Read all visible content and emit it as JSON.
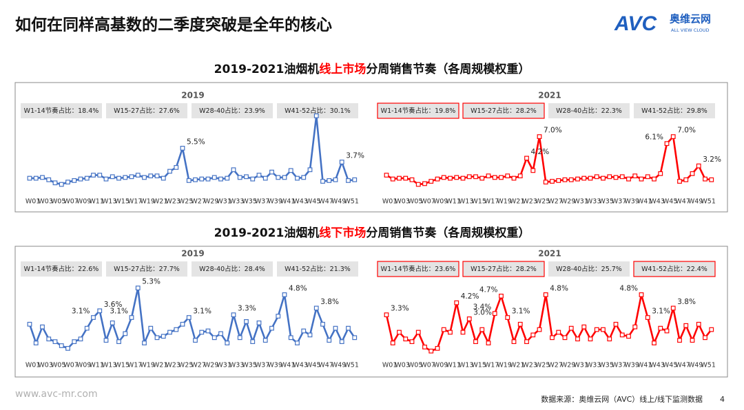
{
  "header": {
    "title": "如何在同样高基数的二季度突破是全年的核心"
  },
  "logo": {
    "mark": "AVC",
    "name": "奥维云网",
    "tagline": "ALL VIEW CLOUD"
  },
  "sections": [
    {
      "title": [
        {
          "text": "2019-2021油烟机",
          "highlight": false
        },
        {
          "text": "线上市场",
          "highlight": true
        },
        {
          "text": "分周销售节奏（各周规模权重）",
          "highlight": false
        }
      ]
    },
    {
      "title": [
        {
          "text": "2019-2021油烟机",
          "highlight": false
        },
        {
          "text": "线下市场",
          "highlight": true
        },
        {
          "text": "分周销售节奏（各周规模权重）",
          "highlight": false
        }
      ]
    }
  ],
  "chart_data": [
    {
      "type": "line",
      "title": "2019",
      "ylim": [
        0,
        10
      ],
      "stats": [
        {
          "text": "W1-14节奏占比：18.4%",
          "highlight": false
        },
        {
          "text": "W15-27占比：27.6%",
          "highlight": false
        },
        {
          "text": "W28-40占比：23.9%",
          "highlight": false
        },
        {
          "text": "W41-52占比：30.1%",
          "highlight": false
        }
      ],
      "categories": [
        "W01",
        null,
        "W03",
        null,
        "W05",
        null,
        "W07",
        null,
        "W09",
        null,
        "W11",
        null,
        "W13",
        null,
        "W15",
        null,
        "W17",
        null,
        "W19",
        null,
        "W21",
        null,
        "W23",
        null,
        "W25",
        null,
        "W27",
        null,
        "W29",
        null,
        "W31",
        null,
        "W33",
        null,
        "W35",
        null,
        "W37",
        null,
        "W39",
        null,
        "W41",
        null,
        "W43",
        null,
        "W45",
        null,
        "W47",
        null,
        "W49",
        null,
        "W51",
        null
      ],
      "series": [
        {
          "color": "#4472c4",
          "values": [
            1.6,
            1.6,
            1.7,
            1.4,
            1.0,
            0.8,
            1.1,
            1.3,
            1.5,
            1.6,
            2.0,
            2.0,
            1.5,
            1.8,
            1.6,
            1.7,
            1.8,
            2.0,
            1.7,
            1.9,
            1.9,
            1.6,
            2.5,
            3.0,
            5.5,
            1.3,
            1.4,
            1.5,
            1.5,
            1.7,
            1.5,
            1.6,
            2.7,
            1.7,
            1.8,
            1.5,
            2.0,
            1.6,
            2.4,
            1.7,
            1.7,
            2.6,
            1.6,
            1.7,
            2.7,
            9.7,
            1.2,
            1.3,
            1.4,
            3.7,
            1.3,
            1.4
          ],
          "value_labels": [
            null,
            null,
            null,
            null,
            null,
            null,
            null,
            null,
            null,
            null,
            null,
            null,
            null,
            null,
            null,
            null,
            null,
            null,
            null,
            null,
            null,
            null,
            null,
            null,
            "5.5%",
            null,
            null,
            null,
            null,
            null,
            null,
            null,
            null,
            null,
            null,
            null,
            null,
            null,
            null,
            null,
            null,
            null,
            null,
            null,
            null,
            null,
            null,
            null,
            null,
            "3.7%",
            null,
            null
          ]
        }
      ]
    },
    {
      "type": "line",
      "title": "2021",
      "ylim": [
        0,
        10
      ],
      "stats": [
        {
          "text": "W1-14节奏占比：19.8%",
          "highlight": true
        },
        {
          "text": "W15-27占比：28.2%",
          "highlight": true
        },
        {
          "text": "W28-40占比：22.3%",
          "highlight": false
        },
        {
          "text": "W41-52占比：29.8%",
          "highlight": false
        }
      ],
      "categories": [
        "W01",
        null,
        "W03",
        null,
        "W05",
        null,
        "W07",
        null,
        "W09",
        null,
        "W11",
        null,
        "W13",
        null,
        "W15",
        null,
        "W17",
        null,
        "W19",
        null,
        "W21",
        null,
        "W23",
        null,
        "W25",
        null,
        "W27",
        null,
        "W29",
        null,
        "W31",
        null,
        "W33",
        null,
        "W35",
        null,
        "W37",
        null,
        "W39",
        null,
        "W41",
        null,
        "W43",
        null,
        "W45",
        null,
        "W47",
        null,
        "W49",
        null,
        "W51",
        null
      ],
      "series": [
        {
          "color": "#ff0000",
          "values": [
            2.0,
            1.5,
            1.6,
            1.6,
            1.4,
            0.8,
            0.9,
            1.2,
            1.5,
            1.7,
            1.6,
            1.7,
            1.6,
            1.8,
            1.8,
            1.6,
            1.9,
            1.7,
            1.7,
            1.9,
            1.6,
            1.9,
            4.2,
            2.6,
            7.0,
            1.1,
            1.2,
            1.3,
            1.4,
            1.4,
            1.5,
            1.6,
            1.6,
            1.8,
            1.6,
            1.8,
            1.7,
            1.8,
            1.5,
            1.9,
            1.5,
            1.8,
            1.5,
            2.2,
            6.1,
            7.0,
            1.2,
            1.4,
            2.2,
            3.2,
            1.5,
            1.4
          ],
          "value_labels": [
            null,
            null,
            null,
            null,
            null,
            null,
            null,
            null,
            null,
            null,
            null,
            null,
            null,
            null,
            null,
            null,
            null,
            null,
            null,
            null,
            null,
            null,
            "4.2%",
            null,
            "7.0%",
            null,
            null,
            null,
            null,
            null,
            null,
            null,
            null,
            null,
            null,
            null,
            null,
            null,
            null,
            null,
            null,
            null,
            null,
            null,
            "6.1%",
            "7.0%",
            null,
            null,
            null,
            "3.2%",
            null,
            null
          ]
        }
      ]
    },
    {
      "type": "line",
      "title": "2019",
      "ylim": [
        0,
        6
      ],
      "stats": [
        {
          "text": "W1-14节奏占比：22.6%",
          "highlight": false
        },
        {
          "text": "W15-27占比：27.7%",
          "highlight": false
        },
        {
          "text": "W28-40占比：28.4%",
          "highlight": false
        },
        {
          "text": "W41-52占比：21.3%",
          "highlight": false
        }
      ],
      "categories": [
        "W01",
        null,
        "W03",
        null,
        "W05",
        null,
        "W07",
        null,
        "W09",
        null,
        "W11",
        null,
        "W13",
        null,
        "W15",
        null,
        "W17",
        null,
        "W19",
        null,
        "W21",
        null,
        "W23",
        null,
        "W25",
        null,
        "W27",
        null,
        "W29",
        null,
        "W31",
        null,
        "W33",
        null,
        "W35",
        null,
        "W37",
        null,
        "W39",
        null,
        "W41",
        null,
        "W43",
        null,
        "W45",
        null,
        "W47",
        null,
        "W49",
        null,
        "W51",
        null
      ],
      "series": [
        {
          "color": "#4472c4",
          "values": [
            2.6,
            1.2,
            2.4,
            1.5,
            1.3,
            1.0,
            0.8,
            1.3,
            1.5,
            2.3,
            3.1,
            3.6,
            1.4,
            2.7,
            1.3,
            1.9,
            3.1,
            5.3,
            1.2,
            2.3,
            1.6,
            1.7,
            2.0,
            2.2,
            2.6,
            3.1,
            1.4,
            2.0,
            2.1,
            1.6,
            1.9,
            1.2,
            3.3,
            1.6,
            2.8,
            1.3,
            2.7,
            1.4,
            2.3,
            3.2,
            4.8,
            1.6,
            1.2,
            2.1,
            1.8,
            3.8,
            2.6,
            1.4,
            2.3,
            1.3,
            2.3,
            1.6
          ],
          "value_labels": [
            null,
            null,
            null,
            null,
            null,
            null,
            null,
            null,
            null,
            null,
            "3.1%",
            "3.6%",
            null,
            null,
            null,
            null,
            "3.1%",
            "5.3%",
            null,
            null,
            null,
            null,
            null,
            null,
            null,
            "3.1%",
            null,
            null,
            null,
            null,
            null,
            null,
            "3.3%",
            null,
            null,
            null,
            null,
            null,
            null,
            null,
            "4.8%",
            null,
            null,
            null,
            null,
            "3.8%",
            null,
            null,
            null,
            null,
            null,
            null
          ]
        }
      ]
    },
    {
      "type": "line",
      "title": "2021",
      "ylim": [
        0,
        6
      ],
      "stats": [
        {
          "text": "W1-14节奏占比：23.6%",
          "highlight": true
        },
        {
          "text": "W15-27占比：28.2%",
          "highlight": true
        },
        {
          "text": "W28-40占比：25.7%",
          "highlight": false
        },
        {
          "text": "W41-52占比：22.4%",
          "highlight": true
        }
      ],
      "categories": [
        "W01",
        null,
        "W03",
        null,
        "W05",
        null,
        "W07",
        null,
        "W09",
        null,
        "W11",
        null,
        "W13",
        null,
        "W15",
        null,
        "W17",
        null,
        "W19",
        null,
        "W21",
        null,
        "W23",
        null,
        "W25",
        null,
        "W27",
        null,
        "W29",
        null,
        "W31",
        null,
        "W33",
        null,
        "W35",
        null,
        "W37",
        null,
        "W39",
        null,
        "W41",
        null,
        "W43",
        null,
        "W45",
        null,
        "W47",
        null,
        "W49",
        null,
        "W51",
        null
      ],
      "series": [
        {
          "color": "#ff0000",
          "values": [
            3.3,
            1.2,
            2.0,
            1.5,
            1.3,
            2.0,
            0.9,
            0.6,
            0.8,
            2.2,
            2.0,
            4.2,
            2.0,
            3.0,
            1.3,
            2.2,
            1.2,
            3.4,
            4.7,
            3.1,
            1.3,
            2.6,
            1.3,
            1.8,
            2.2,
            4.8,
            1.6,
            2.0,
            1.6,
            2.3,
            1.5,
            2.4,
            1.5,
            2.2,
            2.2,
            1.5,
            2.6,
            1.8,
            1.7,
            2.4,
            4.8,
            3.1,
            1.2,
            2.3,
            2.1,
            3.8,
            1.4,
            2.5,
            1.4,
            2.6,
            1.6,
            2.2
          ],
          "value_labels": [
            "3.3%",
            null,
            null,
            null,
            null,
            null,
            null,
            null,
            null,
            null,
            null,
            "4.2%",
            null,
            "3.0%",
            null,
            null,
            null,
            "3.4%",
            "4.7%",
            "3.1%",
            null,
            null,
            null,
            null,
            null,
            "4.8%",
            null,
            null,
            null,
            null,
            null,
            null,
            null,
            null,
            null,
            null,
            null,
            null,
            null,
            null,
            "4.8%",
            "3.1%",
            null,
            null,
            null,
            "3.8%",
            null,
            null,
            null,
            null,
            null,
            null
          ]
        }
      ]
    }
  ],
  "footer": {
    "url": "www.avc-mr.com",
    "source": "数据来源：奥维云网（AVC）线上/线下监测数据",
    "page": "4"
  }
}
